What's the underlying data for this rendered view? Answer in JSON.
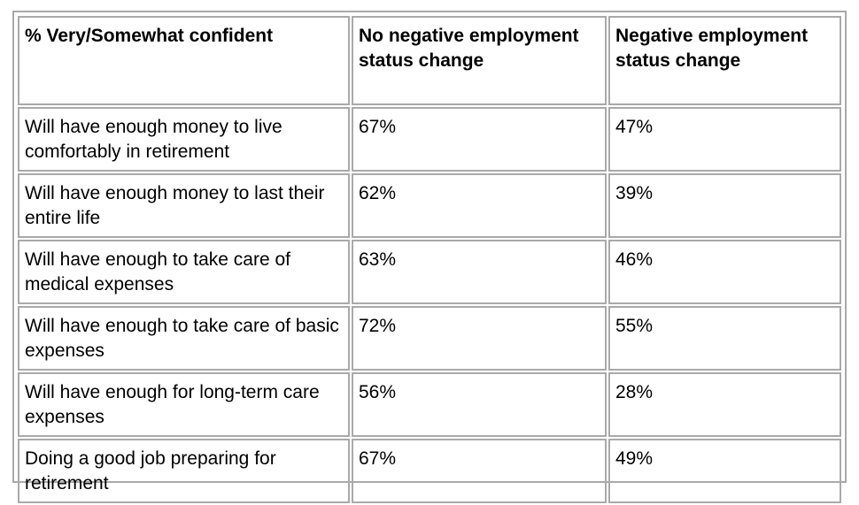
{
  "table": {
    "headers": [
      "% Very/Somewhat confident",
      "No negative employment status change",
      "Negative employment status change"
    ],
    "rows": [
      {
        "label": "Will have enough money to live comfortably in retirement",
        "no_negative": "67%",
        "negative": "47%"
      },
      {
        "label": "Will have enough money to last their entire life",
        "no_negative": "62%",
        "negative": "39%"
      },
      {
        "label": "Will have enough to take care of medical expenses",
        "no_negative": "63%",
        "negative": "46%"
      },
      {
        "label": "Will have enough to take care of basic expenses",
        "no_negative": "72%",
        "negative": "55%"
      },
      {
        "label": "Will have enough for long-term care expenses",
        "no_negative": "56%",
        "negative": "28%"
      },
      {
        "label": "Doing a good job preparing for retirement",
        "no_negative": "67%",
        "negative": "49%"
      }
    ]
  }
}
